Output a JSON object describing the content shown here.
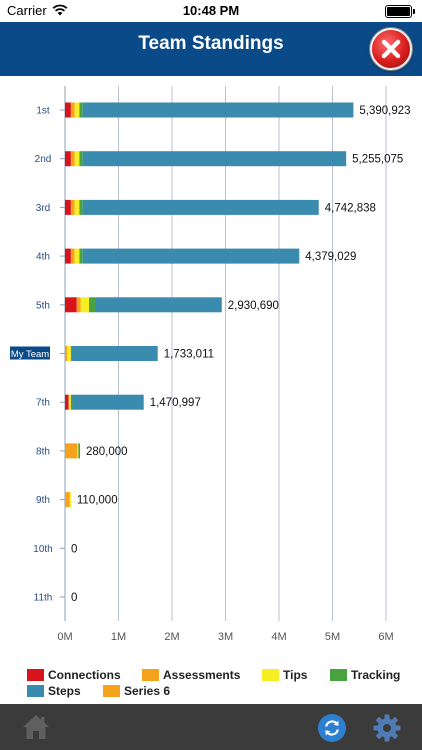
{
  "status_bar": {
    "carrier": "Carrier",
    "time": "10:48 PM"
  },
  "header": {
    "title": "Team Standings",
    "close_icon": "close-icon"
  },
  "colors": {
    "header": "#0b4a89",
    "Connections": "#d7141b",
    "Assessments": "#f5a31c",
    "Tips": "#f7ee25",
    "Tracking": "#48a23f",
    "Steps": "#3a8bad",
    "Series 6": "#f5a31c",
    "highlight_label_bg": "#0b4a89"
  },
  "chart_data": {
    "type": "bar",
    "orientation": "horizontal",
    "stacked": true,
    "categories": [
      "1st",
      "2nd",
      "3rd",
      "4th",
      "5th",
      "My Team",
      "7th",
      "8th",
      "9th",
      "10th",
      "11th"
    ],
    "highlighted_category": "My Team",
    "series": [
      {
        "name": "Connections",
        "values": [
          110000,
          110000,
          110000,
          110000,
          220000,
          0,
          70000,
          0,
          0,
          0,
          0
        ]
      },
      {
        "name": "Assessments",
        "values": [
          70000,
          70000,
          70000,
          70000,
          70000,
          40000,
          0,
          230000,
          90000,
          0,
          0
        ]
      },
      {
        "name": "Tips",
        "values": [
          90000,
          90000,
          90000,
          90000,
          160000,
          70000,
          40000,
          20000,
          20000,
          0,
          0
        ]
      },
      {
        "name": "Tracking",
        "values": [
          60000,
          60000,
          60000,
          60000,
          120000,
          20000,
          30000,
          30000,
          0,
          0,
          0
        ]
      },
      {
        "name": "Steps",
        "values": [
          5060923,
          4925075,
          4412838,
          4049029,
          2360690,
          1603011,
          1330997,
          0,
          0,
          0,
          0
        ]
      },
      {
        "name": "Series 6",
        "values": [
          0,
          0,
          0,
          0,
          0,
          0,
          0,
          0,
          0,
          0,
          0
        ]
      }
    ],
    "totals_labels": [
      "5,390,923",
      "5,255,075",
      "4,742,838",
      "4,379,029",
      "2,930,690",
      "1,733,011",
      "1,470,997",
      "280,000",
      "110,000",
      "0",
      "0"
    ],
    "x_ticks": [
      "0M",
      "1M",
      "2M",
      "3M",
      "4M",
      "5M",
      "6M"
    ],
    "xlim": [
      0,
      6000000
    ],
    "grid": true,
    "legend_position": "bottom"
  },
  "legend": [
    {
      "name": "Connections",
      "swatch_icon": "legend-swatch"
    },
    {
      "name": "Assessments",
      "swatch_icon": "legend-swatch"
    },
    {
      "name": "Tips",
      "swatch_icon": "legend-swatch"
    },
    {
      "name": "Tracking",
      "swatch_icon": "legend-swatch"
    },
    {
      "name": "Steps",
      "swatch_icon": "legend-swatch"
    },
    {
      "name": "Series 6",
      "swatch_icon": "legend-swatch"
    }
  ],
  "bottom_bar": {
    "home_icon": "home-icon",
    "refresh_icon": "refresh-icon",
    "settings_icon": "gear-icon"
  }
}
